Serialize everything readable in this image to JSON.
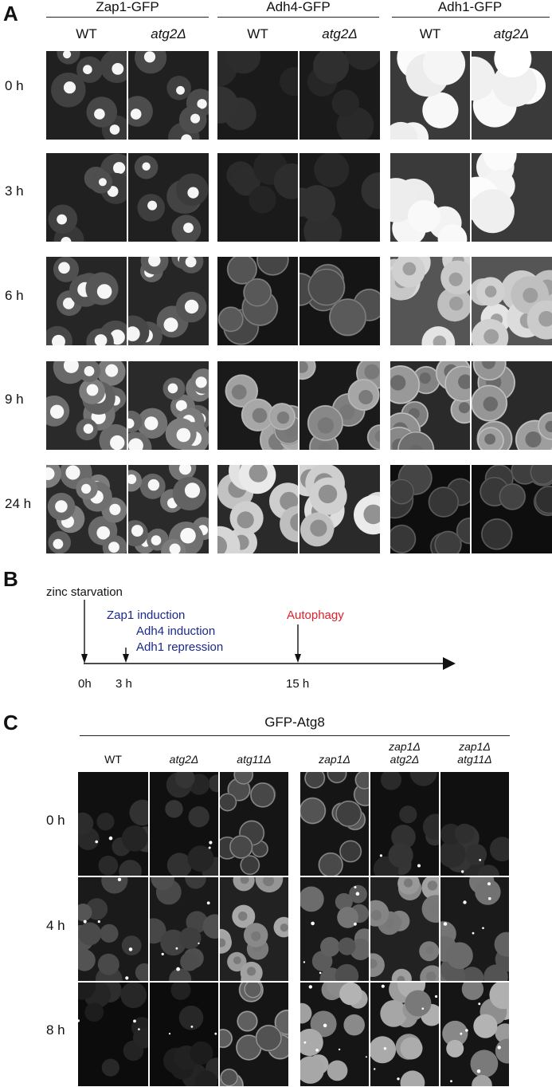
{
  "panelA": {
    "letter": "A",
    "groups": [
      {
        "title": "Zap1-GFP",
        "cols": [
          "WT",
          "atg2Δ"
        ]
      },
      {
        "title": "Adh4-GFP",
        "cols": [
          "WT",
          "atg2Δ"
        ]
      },
      {
        "title": "Adh1-GFP",
        "cols": [
          "WT",
          "atg2Δ"
        ]
      }
    ],
    "rows": [
      "0 h",
      "3 h",
      "6 h",
      "9 h",
      "24 h"
    ]
  },
  "panelB": {
    "letter": "B",
    "event_zinc": "zinc starvation",
    "event_zap1": "Zap1 induction",
    "event_adh4": "Adh4 induction",
    "event_adh1": "Adh1 repression",
    "event_autophagy": "Autophagy",
    "ticks": [
      "0h",
      "3 h",
      "15 h"
    ],
    "colors": {
      "blue": "#1b2a8a",
      "red": "#e0202a"
    }
  },
  "panelC": {
    "letter": "C",
    "title": "GFP-Atg8",
    "cols": [
      "WT",
      "atg2Δ",
      "atg11Δ",
      "zap1Δ",
      "zap1Δ atg2Δ",
      "zap1Δ atg11Δ"
    ],
    "rows": [
      "0 h",
      "4 h",
      "8 h"
    ]
  }
}
